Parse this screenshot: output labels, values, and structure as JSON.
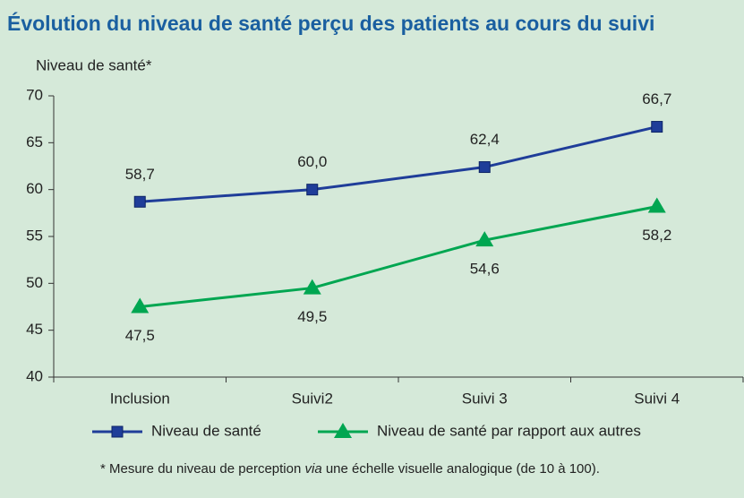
{
  "chart_data": {
    "type": "line",
    "title": "Évolution du niveau de santé perçu des patients au cours du suivi",
    "y_label": "Niveau de santé*",
    "categories": [
      "Inclusion",
      "Suivi2",
      "Suivi 3",
      "Suivi 4"
    ],
    "series": [
      {
        "name": "Niveau de santé",
        "color": "#1f3d99",
        "marker": "square",
        "values": [
          58.7,
          60.0,
          62.4,
          66.7
        ],
        "value_labels": [
          "58,7",
          "60,0",
          "62,4",
          "66,7"
        ]
      },
      {
        "name": "Niveau de santé par rapport aux autres",
        "color": "#00a651",
        "marker": "triangle",
        "values": [
          47.5,
          49.5,
          54.6,
          58.2
        ],
        "value_labels": [
          "47,5",
          "49,5",
          "54,6",
          "58,2"
        ]
      }
    ],
    "ylim": [
      40,
      70
    ],
    "yticks": [
      40,
      45,
      50,
      55,
      60,
      65,
      70
    ],
    "note": [
      "* Mesure du niveau de perception ",
      "via",
      " une échelle visuelle analogique (de 10 à 100)."
    ]
  }
}
